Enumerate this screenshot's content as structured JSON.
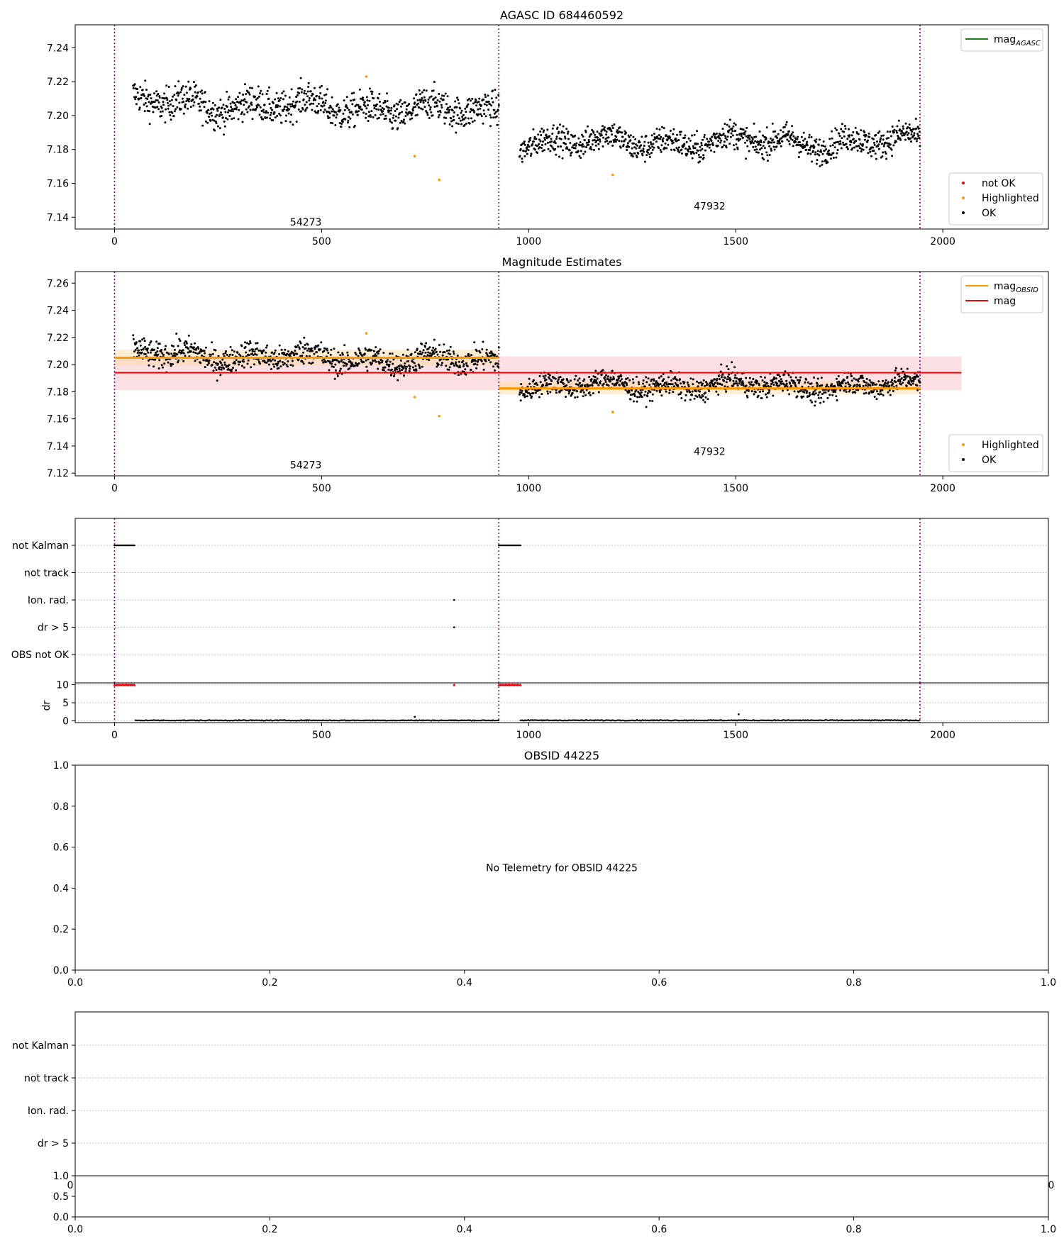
{
  "colors": {
    "ok": "#000000",
    "highlighted": "#ff9900",
    "not_ok": "#e8000b",
    "mag_agasc": "#1a7f1a",
    "mag_obsid": "#ff9900",
    "mag": "#ff0000",
    "obs_boundary": "#800080",
    "mag_band": "#f4a6b2",
    "obsid_band": "#ffd9a0"
  },
  "chart_data": [
    {
      "id": "agasc",
      "type": "scatter",
      "title": "AGASC ID 684460592",
      "xlim": [
        -95,
        2255
      ],
      "ylim": [
        7.133,
        7.2535
      ],
      "xticks": [
        0,
        500,
        1000,
        1500,
        2000
      ],
      "yticks": [
        7.14,
        7.16,
        7.18,
        7.2,
        7.22,
        7.24
      ],
      "ytick_labels": [
        "7.14",
        "7.16",
        "7.18",
        "7.20",
        "7.22",
        "7.24"
      ],
      "vlines": [
        0,
        928,
        1945
      ],
      "obsid_labels": [
        {
          "text": "54273",
          "x": 462,
          "y": 7.135
        },
        {
          "text": "47932",
          "x": 1437,
          "y": 7.1445
        }
      ],
      "segments": [
        {
          "x0": 45,
          "x1": 928,
          "base": 7.208,
          "drift": -0.006,
          "spread": 0.0065,
          "n": 880
        },
        {
          "x0": 978,
          "x1": 1945,
          "base": 7.1845,
          "drift": 0.0,
          "spread": 0.0055,
          "n": 990
        }
      ],
      "highlighted": [
        {
          "x": 608,
          "y": 7.223
        },
        {
          "x": 725,
          "y": 7.176
        },
        {
          "x": 784,
          "y": 7.162
        },
        {
          "x": 1203,
          "y": 7.165
        }
      ],
      "legends": [
        {
          "position": "top-right",
          "entries": [
            {
              "label": "mag",
              "sub": "AGASC",
              "kind": "line",
              "color_key": "mag_agasc"
            }
          ]
        },
        {
          "position": "lower-right",
          "entries": [
            {
              "label": "not OK",
              "kind": "dot",
              "color_key": "not_ok"
            },
            {
              "label": "Highlighted",
              "kind": "dot",
              "color_key": "highlighted"
            },
            {
              "label": "OK",
              "kind": "dot",
              "color_key": "ok"
            }
          ]
        }
      ]
    },
    {
      "id": "estimates",
      "type": "scatter",
      "title": "Magnitude Estimates",
      "xlim": [
        -95,
        2255
      ],
      "ylim": [
        7.118,
        7.2685
      ],
      "xticks": [
        0,
        500,
        1000,
        1500,
        2000
      ],
      "yticks": [
        7.12,
        7.14,
        7.16,
        7.18,
        7.2,
        7.22,
        7.24,
        7.26
      ],
      "ytick_labels": [
        "7.12",
        "7.14",
        "7.16",
        "7.18",
        "7.20",
        "7.22",
        "7.24",
        "7.26"
      ],
      "vlines": [
        0,
        928,
        1945
      ],
      "obsid_labels": [
        {
          "text": "54273",
          "x": 462,
          "y": 7.1235
        },
        {
          "text": "47932",
          "x": 1437,
          "y": 7.1335
        }
      ],
      "mag_line": {
        "y": 7.194,
        "band": [
          7.181,
          7.206
        ],
        "x0": 0,
        "x1": 2045
      },
      "obsid_lines": [
        {
          "x0": 0,
          "x1": 928,
          "y": 7.205,
          "band": [
            7.199,
            7.211
          ]
        },
        {
          "x0": 928,
          "x1": 1945,
          "y": 7.1825,
          "band": [
            7.178,
            7.1875
          ]
        }
      ],
      "segments": [
        {
          "x0": 45,
          "x1": 928,
          "base": 7.208,
          "drift": -0.006,
          "spread": 0.0065,
          "n": 880
        },
        {
          "x0": 978,
          "x1": 1945,
          "base": 7.1845,
          "drift": 0.0,
          "spread": 0.0055,
          "n": 990
        }
      ],
      "highlighted": [
        {
          "x": 608,
          "y": 7.223
        },
        {
          "x": 725,
          "y": 7.176
        },
        {
          "x": 784,
          "y": 7.162
        },
        {
          "x": 1203,
          "y": 7.165
        }
      ],
      "legends": [
        {
          "position": "top-right",
          "entries": [
            {
              "label": "mag",
              "sub": "OBSID",
              "kind": "line",
              "color_key": "mag_obsid"
            },
            {
              "label": "mag",
              "kind": "line",
              "color_key": "mag"
            }
          ]
        },
        {
          "position": "lower-right",
          "entries": [
            {
              "label": "Highlighted",
              "kind": "dot",
              "color_key": "highlighted"
            },
            {
              "label": "OK",
              "kind": "dot",
              "color_key": "ok"
            }
          ]
        }
      ]
    },
    {
      "id": "flags",
      "type": "scatter",
      "xlim": [
        -95,
        2255
      ],
      "categories": [
        "not Kalman",
        "not track",
        "Ion. rad.",
        "dr > 5",
        "OBS not OK"
      ],
      "flag_points": [
        {
          "category": "not Kalman",
          "x0": 0,
          "x1": 48
        },
        {
          "category": "not Kalman",
          "x0": 928,
          "x1": 980
        },
        {
          "category": "Ion. rad.",
          "x0": 820,
          "x1": 820
        },
        {
          "category": "dr > 5",
          "x0": 820,
          "x1": 820
        }
      ],
      "vlines": [
        0,
        928,
        1945
      ]
    },
    {
      "id": "dr",
      "type": "scatter",
      "ylabel": "dr",
      "xlim": [
        -95,
        2255
      ],
      "ylim": [
        -0.5,
        10.5
      ],
      "yticks": [
        0,
        5,
        10
      ],
      "xticks": [
        0,
        500,
        1000,
        1500,
        2000
      ],
      "vlines": [
        0,
        928,
        1945
      ],
      "clipped": [
        {
          "x0": 0,
          "x1": 48,
          "y": 10
        },
        {
          "x0": 820,
          "x1": 820,
          "y": 10
        },
        {
          "x0": 928,
          "x1": 980,
          "y": 10
        }
      ],
      "segments": [
        {
          "x0": 50,
          "x1": 928,
          "level": 0.12,
          "spread": 0.12
        },
        {
          "x0": 980,
          "x1": 1945,
          "level": 0.14,
          "spread": 0.12
        }
      ],
      "outliers": [
        {
          "x": 725,
          "y": 1.1
        },
        {
          "x": 1507,
          "y": 1.8
        }
      ]
    },
    {
      "id": "obsid-empty",
      "type": "scatter",
      "title": "OBSID 44225",
      "annotation": "No Telemetry for OBSID 44225",
      "xlim": [
        0,
        1
      ],
      "ylim": [
        0,
        1
      ],
      "xticks": [
        0,
        0.2,
        0.4,
        0.6,
        0.8,
        1.0
      ],
      "yticks": [
        0,
        0.2,
        0.4,
        0.6,
        0.8,
        1.0
      ],
      "xtick_labels": [
        "0.0",
        "0.2",
        "0.4",
        "0.6",
        "0.8",
        "1.0"
      ],
      "ytick_labels": [
        "0.0",
        "0.2",
        "0.4",
        "0.6",
        "0.8",
        "1.0"
      ]
    },
    {
      "id": "flags-empty",
      "type": "scatter",
      "categories": [
        "not Kalman",
        "not track",
        "Ion. rad.",
        "dr > 5"
      ],
      "stray_xtick_labels": [
        "0",
        "0"
      ]
    },
    {
      "id": "dr-empty",
      "type": "scatter",
      "xlim": [
        0,
        1
      ],
      "ylim": [
        0,
        1
      ],
      "xticks": [
        0,
        0.2,
        0.4,
        0.6,
        0.8,
        1.0
      ],
      "yticks": [
        0,
        0.5,
        1.0
      ],
      "xtick_labels": [
        "0.0",
        "0.2",
        "0.4",
        "0.6",
        "0.8",
        "1.0"
      ],
      "ytick_labels": [
        "0.0",
        "0.5",
        "1.0"
      ]
    }
  ]
}
